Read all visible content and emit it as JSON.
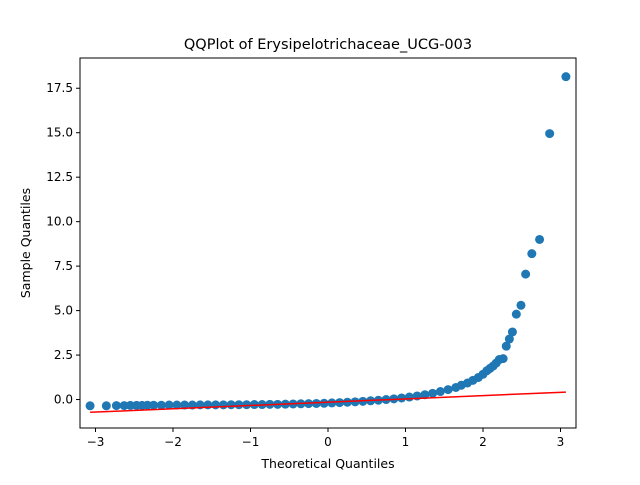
{
  "chart_data": {
    "type": "scatter",
    "title": "QQPlot of Erysipelotrichaceae_UCG-003",
    "xlabel": "Theoretical Quantiles",
    "ylabel": "Sample Quantiles",
    "xlim": [
      -3.2,
      3.2
    ],
    "ylim": [
      -1.6,
      19.2
    ],
    "grid": false,
    "x_ticks": [
      -3,
      -2,
      -1,
      0,
      1,
      2,
      3
    ],
    "x_tick_labels": [
      "−3",
      "−2",
      "−1",
      "0",
      "1",
      "2",
      "3"
    ],
    "y_ticks": [
      0.0,
      2.5,
      5.0,
      7.5,
      10.0,
      12.5,
      15.0,
      17.5
    ],
    "y_tick_labels": [
      "0.0",
      "2.5",
      "5.0",
      "7.5",
      "10.0",
      "12.5",
      "15.0",
      "17.5"
    ],
    "colors": {
      "points": "#1f77b4",
      "reference_line": "#ff0000",
      "axes": "#000000"
    },
    "series": [
      {
        "name": "Sample quantiles",
        "kind": "points",
        "x": [
          -3.07,
          -2.86,
          -2.73,
          -2.63,
          -2.55,
          -2.47,
          -2.4,
          -2.33,
          -2.25,
          -2.15,
          -2.05,
          -1.95,
          -1.85,
          -1.75,
          -1.65,
          -1.55,
          -1.45,
          -1.35,
          -1.25,
          -1.15,
          -1.05,
          -0.95,
          -0.85,
          -0.75,
          -0.65,
          -0.55,
          -0.45,
          -0.35,
          -0.25,
          -0.15,
          -0.05,
          0.05,
          0.15,
          0.25,
          0.35,
          0.45,
          0.55,
          0.65,
          0.75,
          0.85,
          0.95,
          1.05,
          1.15,
          1.25,
          1.35,
          1.45,
          1.55,
          1.65,
          1.72,
          1.8,
          1.87,
          1.94,
          2.0,
          2.05,
          2.09,
          2.13,
          2.17,
          2.21,
          2.26,
          2.3,
          2.34,
          2.38,
          2.43,
          2.49,
          2.55,
          2.63,
          2.73,
          2.86,
          3.07
        ],
        "y": [
          -0.35,
          -0.35,
          -0.34,
          -0.34,
          -0.33,
          -0.33,
          -0.33,
          -0.32,
          -0.32,
          -0.32,
          -0.31,
          -0.31,
          -0.31,
          -0.31,
          -0.3,
          -0.3,
          -0.3,
          -0.3,
          -0.29,
          -0.29,
          -0.29,
          -0.28,
          -0.28,
          -0.27,
          -0.27,
          -0.26,
          -0.25,
          -0.24,
          -0.23,
          -0.22,
          -0.21,
          -0.19,
          -0.17,
          -0.15,
          -0.13,
          -0.1,
          -0.07,
          -0.04,
          0.0,
          0.04,
          0.09,
          0.14,
          0.2,
          0.27,
          0.35,
          0.45,
          0.56,
          0.68,
          0.8,
          0.93,
          1.08,
          1.24,
          1.42,
          1.62,
          1.75,
          1.88,
          2.05,
          2.25,
          2.3,
          3.0,
          3.4,
          3.8,
          4.8,
          5.3,
          7.05,
          8.2,
          9.0,
          14.95,
          18.15
        ]
      },
      {
        "name": "Reference line",
        "kind": "line",
        "x": [
          -3.07,
          3.07
        ],
        "y": [
          -0.72,
          0.42
        ]
      }
    ]
  }
}
